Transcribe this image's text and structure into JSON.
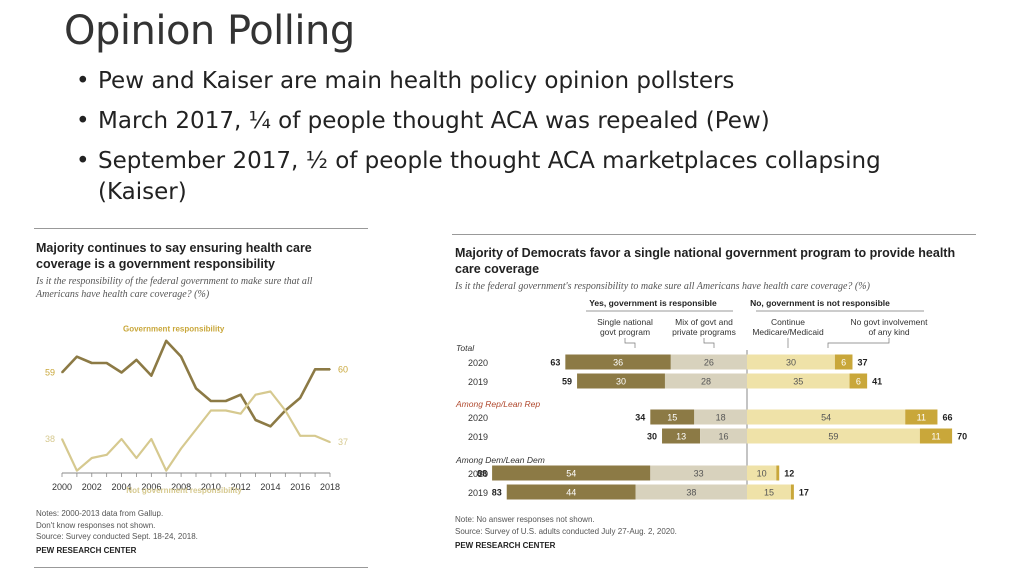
{
  "slide": {
    "title": "Opinion Polling",
    "bullets": [
      "Pew and Kaiser are main health policy opinion pollsters",
      "March 2017, ¼ of people thought ACA was repealed (Pew)",
      "September 2017, ½ of people thought ACA marketplaces collapsing (Kaiser)"
    ]
  },
  "left_chart": {
    "title": "Majority continues to say ensuring health care coverage is a government responsibility",
    "subtitle": "Is it the responsibility of the federal government to make sure that all Americans have health care coverage? (%)",
    "notes": [
      "Notes: 2000-2013 data from Gallup.",
      "Don't know responses not shown.",
      "Source: Survey conducted Sept. 18-24, 2018."
    ],
    "brand": "PEW RESEARCH CENTER"
  },
  "right_chart": {
    "title": "Majority of Democrats favor a single national government program to provide health care coverage",
    "subtitle": "Is it the federal government's responsibility to make sure all Americans have health care coverage? (%)",
    "notes": [
      "Note: No answer responses not shown.",
      "Source: Survey of U.S. adults conducted July 27-Aug. 2, 2020."
    ],
    "brand": "PEW RESEARCH CENTER"
  },
  "colors": {
    "dark_gold": "#8c7a45",
    "light_gold": "#d6c98f",
    "mid_tan": "#d8d2bd",
    "pale_gold": "#efe2a8",
    "gold": "#c9a73a",
    "group_label": "#b0492e"
  },
  "chart_data": [
    {
      "type": "line",
      "title": "Majority continues to say ensuring health care coverage is a government responsibility",
      "x": [
        2000,
        2001,
        2002,
        2003,
        2004,
        2005,
        2006,
        2007,
        2008,
        2009,
        2010,
        2011,
        2012,
        2013,
        2014,
        2015,
        2016,
        2017,
        2018
      ],
      "xticks": [
        "2000",
        "2002",
        "2004",
        "2006",
        "2008",
        "2010",
        "2012",
        "2014",
        "2016",
        "2018"
      ],
      "ylim": [
        20,
        80
      ],
      "series": [
        {
          "name": "Government responsibility",
          "values": [
            59,
            64,
            62,
            62,
            59,
            63,
            58,
            69,
            64,
            54,
            50,
            50,
            52,
            44,
            42,
            47,
            51,
            60,
            60
          ],
          "start_label": "59",
          "end_label": "60"
        },
        {
          "name": "Not government responsibility",
          "values": [
            38,
            28,
            32,
            33,
            38,
            32,
            38,
            28,
            35,
            41,
            47,
            47,
            46,
            52,
            53,
            47,
            39,
            39,
            37
          ],
          "start_label": "38",
          "end_label": "37"
        }
      ]
    },
    {
      "type": "bar",
      "title": "Majority of Democrats favor a single national government program to provide health care coverage",
      "stacked": "diverging",
      "headers": {
        "left": "Yes, government is responsible",
        "right": "No, government is not responsible"
      },
      "series": [
        {
          "name": "Single national govt program",
          "side": "yes"
        },
        {
          "name": "Mix of govt and private programs",
          "side": "yes"
        },
        {
          "name": "Continue Medicare/Medicaid",
          "side": "no"
        },
        {
          "name": "No govt involvement of any kind",
          "side": "no"
        }
      ],
      "groups": [
        {
          "label": "Total",
          "italic_group": true,
          "color_key": "plain",
          "rows": [
            {
              "year": "2020",
              "single": 36,
              "mix": 26,
              "yes_total": 63,
              "continue": 30,
              "no_govt": 6,
              "no_total": 37
            },
            {
              "year": "2019",
              "single": 30,
              "mix": 28,
              "yes_total": 59,
              "continue": 35,
              "no_govt": 6,
              "no_total": 41
            }
          ]
        },
        {
          "label": "Among Rep/Lean Rep",
          "italic_group": true,
          "color_key": "red",
          "rows": [
            {
              "year": "2020",
              "single": 15,
              "mix": 18,
              "yes_total": 34,
              "continue": 54,
              "no_govt": 11,
              "no_total": 66
            },
            {
              "year": "2019",
              "single": 13,
              "mix": 16,
              "yes_total": 30,
              "continue": 59,
              "no_govt": 11,
              "no_total": 70
            }
          ]
        },
        {
          "label": "Among Dem/Lean Dem",
          "italic_group": true,
          "color_key": "plain",
          "rows": [
            {
              "year": "2020",
              "single": 54,
              "mix": 33,
              "yes_total": 88,
              "continue": 10,
              "no_govt": 1,
              "no_total": 12
            },
            {
              "year": "2019",
              "single": 44,
              "mix": 38,
              "yes_total": 83,
              "continue": 15,
              "no_govt": 1,
              "no_total": 17
            }
          ]
        }
      ]
    }
  ]
}
